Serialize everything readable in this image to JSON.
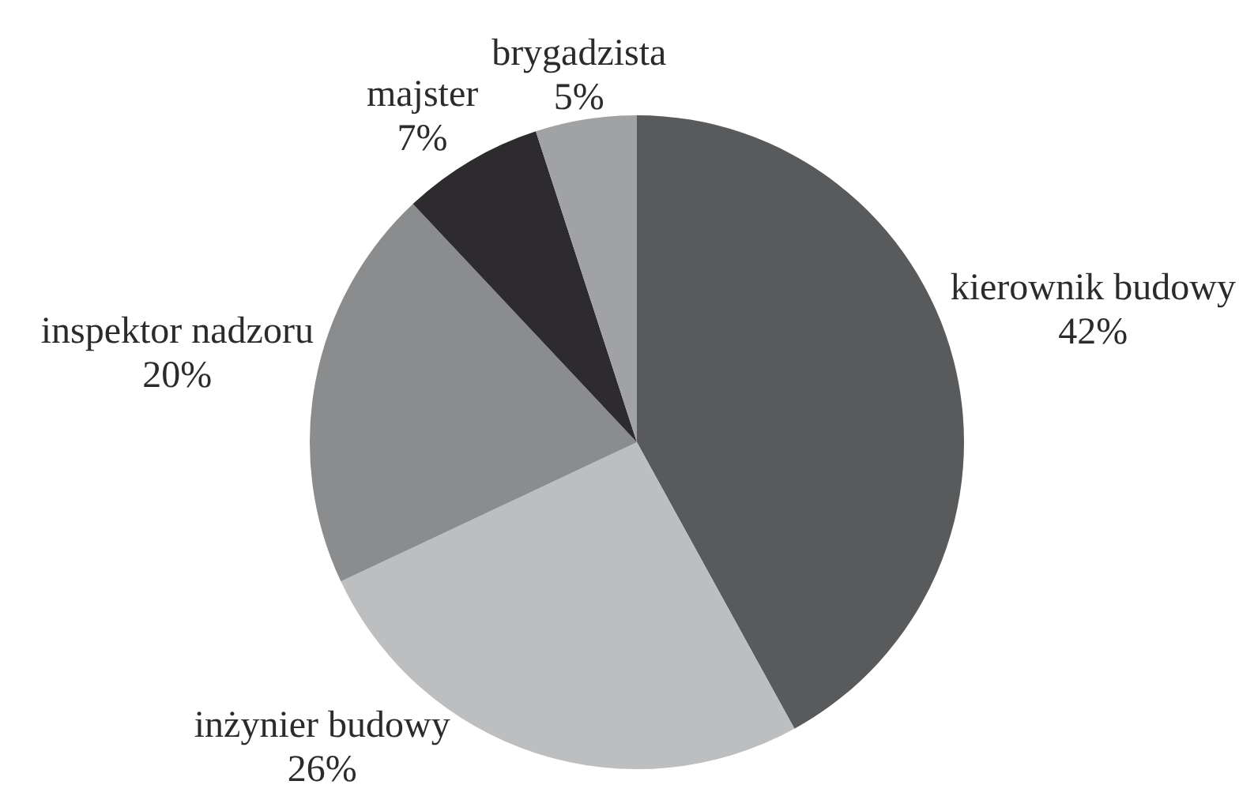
{
  "chart_data": {
    "type": "pie",
    "categories": [
      "kierownik budowy",
      "inżynier budowy",
      "inspektor nadzoru",
      "majster",
      "brygadzista"
    ],
    "values": [
      42,
      26,
      20,
      7,
      5
    ],
    "value_labels": [
      "42%",
      "26%",
      "20%",
      "7%",
      "5%"
    ],
    "colors": [
      "#585a5c",
      "#bcbec0",
      "#8a8c8e",
      "#2e2b2e",
      "#a0a2a4"
    ]
  }
}
